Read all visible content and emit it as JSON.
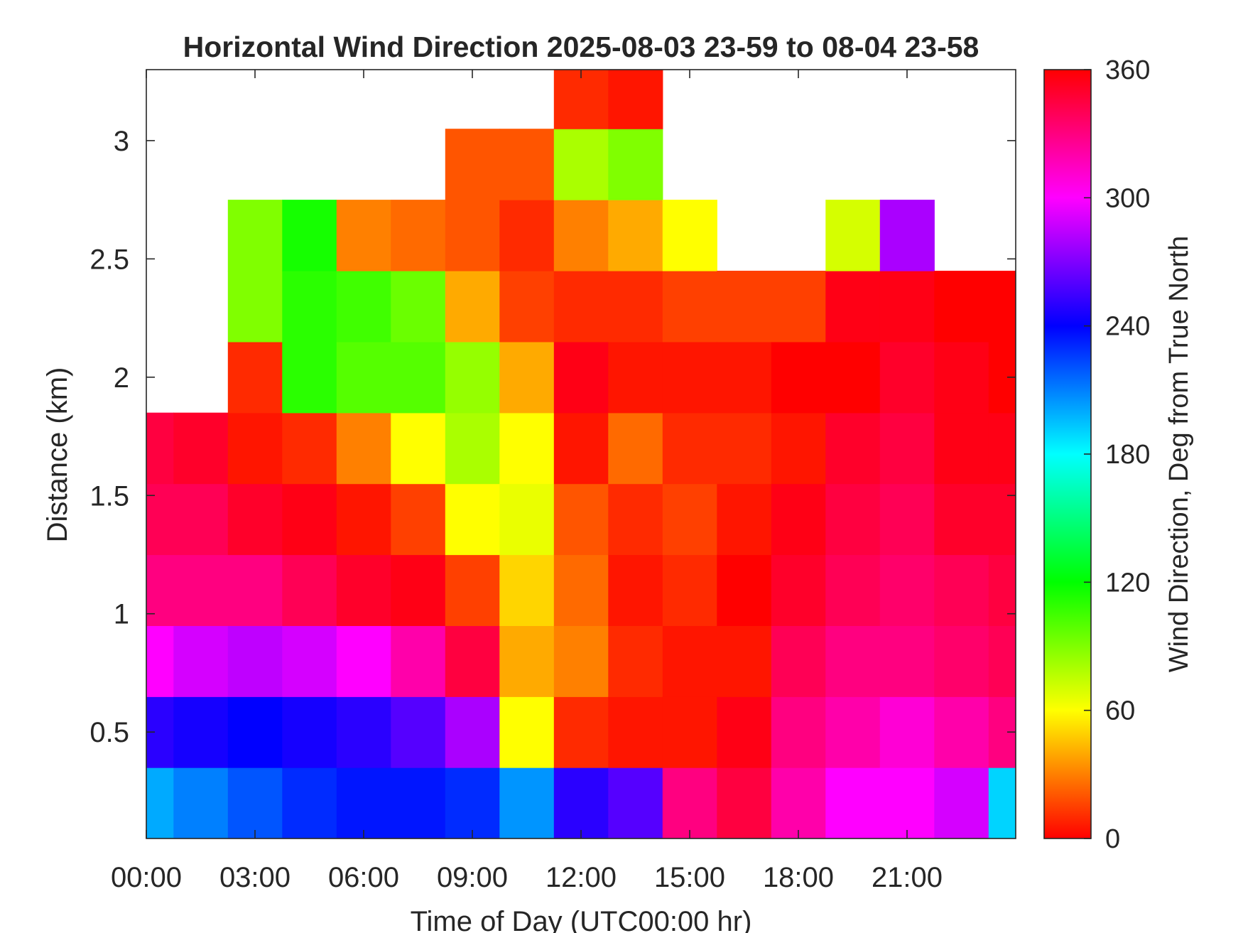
{
  "chart_data": {
    "type": "heatmap",
    "title": "Horizontal Wind Direction 2025-08-03 23-59 to 08-04 23-58",
    "xlabel": "Time of Day (UTC00:00 hr)",
    "ylabel": "Distance (km)",
    "x_unit": "hours",
    "xlim": [
      0,
      24
    ],
    "ylim": [
      0.05,
      3.3
    ],
    "x_ticks": [
      0,
      3,
      6,
      9,
      12,
      15,
      18,
      21
    ],
    "x_tick_labels": [
      "00:00",
      "03:00",
      "06:00",
      "09:00",
      "12:00",
      "15:00",
      "18:00",
      "21:00"
    ],
    "y_ticks": [
      0.5,
      1,
      1.5,
      2,
      2.5,
      3
    ],
    "y_tick_labels": [
      "0.5",
      "1",
      "1.5",
      "2",
      "2.5",
      "3"
    ],
    "colorbar": {
      "label": "Wind Direction, Deg from True North",
      "range": [
        0,
        360
      ],
      "ticks": [
        0,
        60,
        120,
        180,
        240,
        300,
        360
      ],
      "tick_labels": [
        "0",
        "60",
        "120",
        "180",
        "240",
        "300",
        "360"
      ],
      "colormap": "hsv"
    },
    "grid": false,
    "data_grid": {
      "description": "approximate wind direction (degrees) by time (rows, hours) and height (columns, km); null = no data",
      "x_hours": [
        0,
        1.5,
        3,
        4.5,
        6,
        7.5,
        9,
        10.5,
        12,
        13.5,
        15,
        16.5,
        18,
        19.5,
        21,
        22.5,
        24
      ],
      "heights_km": [
        0.2,
        0.5,
        0.8,
        1.1,
        1.4,
        1.7,
        2.0,
        2.3,
        2.6,
        2.9,
        3.2
      ],
      "values": [
        [
          200,
          250,
          300,
          330,
          340,
          345,
          null,
          null,
          null,
          null,
          null
        ],
        [
          210,
          245,
          290,
          330,
          340,
          350,
          null,
          null,
          null,
          null,
          null
        ],
        [
          220,
          240,
          285,
          330,
          350,
          5,
          10,
          90,
          90,
          null,
          null
        ],
        [
          230,
          245,
          290,
          340,
          355,
          10,
          110,
          110,
          115,
          null,
          null
        ],
        [
          235,
          250,
          300,
          350,
          5,
          30,
          100,
          105,
          30,
          null,
          null
        ],
        [
          235,
          260,
          320,
          355,
          15,
          60,
          100,
          95,
          25,
          null,
          null
        ],
        [
          230,
          280,
          345,
          15,
          60,
          80,
          85,
          40,
          20,
          20,
          null
        ],
        [
          205,
          60,
          40,
          50,
          65,
          60,
          40,
          15,
          10,
          20,
          null
        ],
        [
          250,
          10,
          30,
          25,
          20,
          5,
          355,
          10,
          30,
          80,
          10
        ],
        [
          260,
          5,
          10,
          5,
          10,
          25,
          5,
          10,
          40,
          90,
          5
        ],
        [
          330,
          5,
          5,
          10,
          15,
          10,
          5,
          15,
          60,
          null,
          null
        ],
        [
          345,
          355,
          5,
          0,
          5,
          10,
          5,
          15,
          null,
          null,
          null
        ],
        [
          320,
          330,
          340,
          350,
          355,
          5,
          0,
          15,
          null,
          null,
          null
        ],
        [
          300,
          320,
          330,
          340,
          345,
          350,
          0,
          355,
          70,
          null,
          null
        ],
        [
          300,
          310,
          330,
          335,
          340,
          345,
          350,
          355,
          280,
          null,
          null
        ],
        [
          290,
          320,
          335,
          340,
          350,
          355,
          355,
          0,
          null,
          null,
          null
        ],
        [
          190,
          330,
          340,
          345,
          350,
          355,
          0,
          0,
          null,
          null,
          null
        ]
      ]
    }
  }
}
